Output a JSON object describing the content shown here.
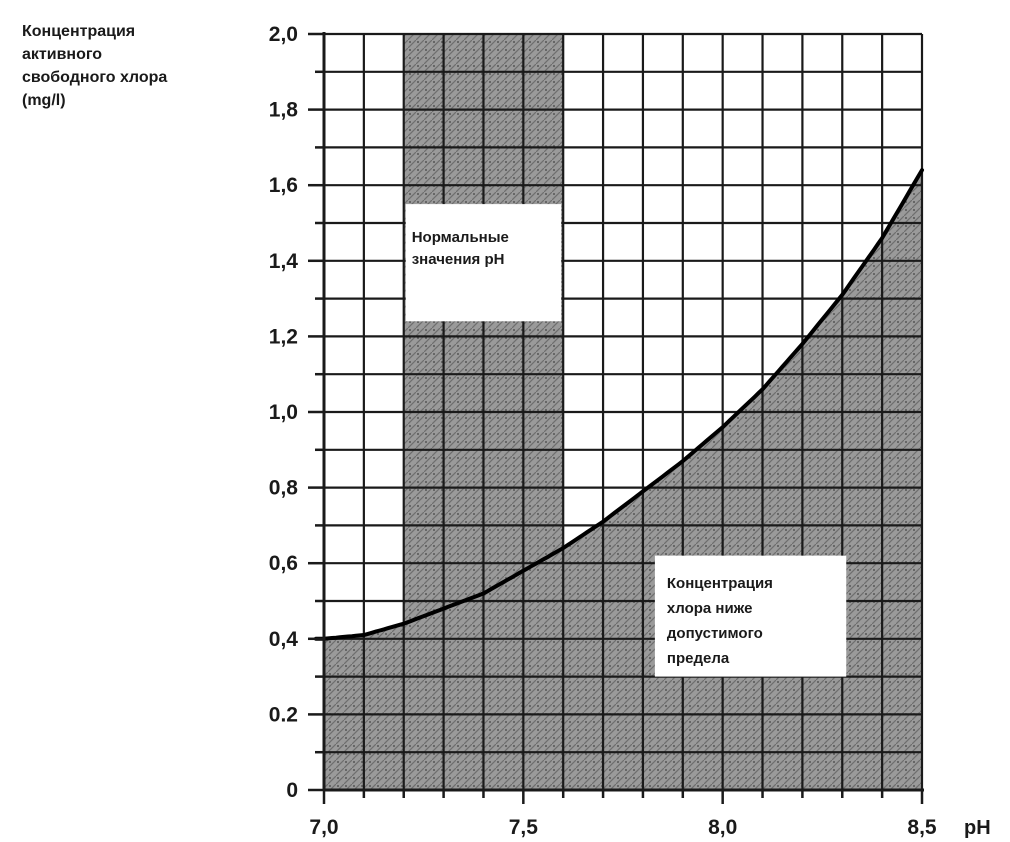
{
  "chart_data": {
    "type": "line",
    "title": "",
    "ylabel_lines": [
      "Концентрация",
      "активного",
      "свободного хлора",
      "(mg/l)"
    ],
    "xlabel": "pH",
    "xlim": [
      7.0,
      8.5
    ],
    "ylim": [
      0,
      2.0
    ],
    "x_ticks": [
      {
        "value": 7.0,
        "label": "7,0"
      },
      {
        "value": 7.5,
        "label": "7,5"
      },
      {
        "value": 8.0,
        "label": "8,0"
      },
      {
        "value": 8.5,
        "label": "8,5"
      }
    ],
    "y_ticks": [
      {
        "value": 0,
        "label": "0"
      },
      {
        "value": 0.2,
        "label": "0.2"
      },
      {
        "value": 0.4,
        "label": "0,4"
      },
      {
        "value": 0.6,
        "label": "0,6"
      },
      {
        "value": 0.8,
        "label": "0,8"
      },
      {
        "value": 1.0,
        "label": "1,0"
      },
      {
        "value": 1.2,
        "label": "1,2"
      },
      {
        "value": 1.4,
        "label": "1,4"
      },
      {
        "value": 1.6,
        "label": "1,6"
      },
      {
        "value": 1.8,
        "label": "1,8"
      },
      {
        "value": 2.0,
        "label": "2,0"
      }
    ],
    "grid": true,
    "series": [
      {
        "x": [
          7.0,
          7.1,
          7.2,
          7.3,
          7.4,
          7.5,
          7.6,
          7.7,
          7.8,
          7.9,
          8.0,
          8.1,
          8.2,
          8.3,
          8.4,
          8.5
        ],
        "y": [
          0.4,
          0.41,
          0.44,
          0.48,
          0.52,
          0.58,
          0.64,
          0.71,
          0.79,
          0.87,
          0.96,
          1.06,
          1.18,
          1.31,
          1.46,
          1.64
        ]
      }
    ],
    "normal_ph_band": {
      "x_range": [
        7.2,
        7.6
      ],
      "y_range": [
        0,
        2.0
      ],
      "label_lines": [
        "Нормальные",
        "значения pH"
      ]
    },
    "below_limit_region": {
      "label_lines": [
        "Концентрация",
        "хлора ниже",
        "допустимого",
        "предела"
      ]
    },
    "colors": {
      "axis": "#1a1a1a",
      "grid": "#1a1a1a",
      "shade": "#9a9a9a",
      "curve": "#000000"
    }
  }
}
